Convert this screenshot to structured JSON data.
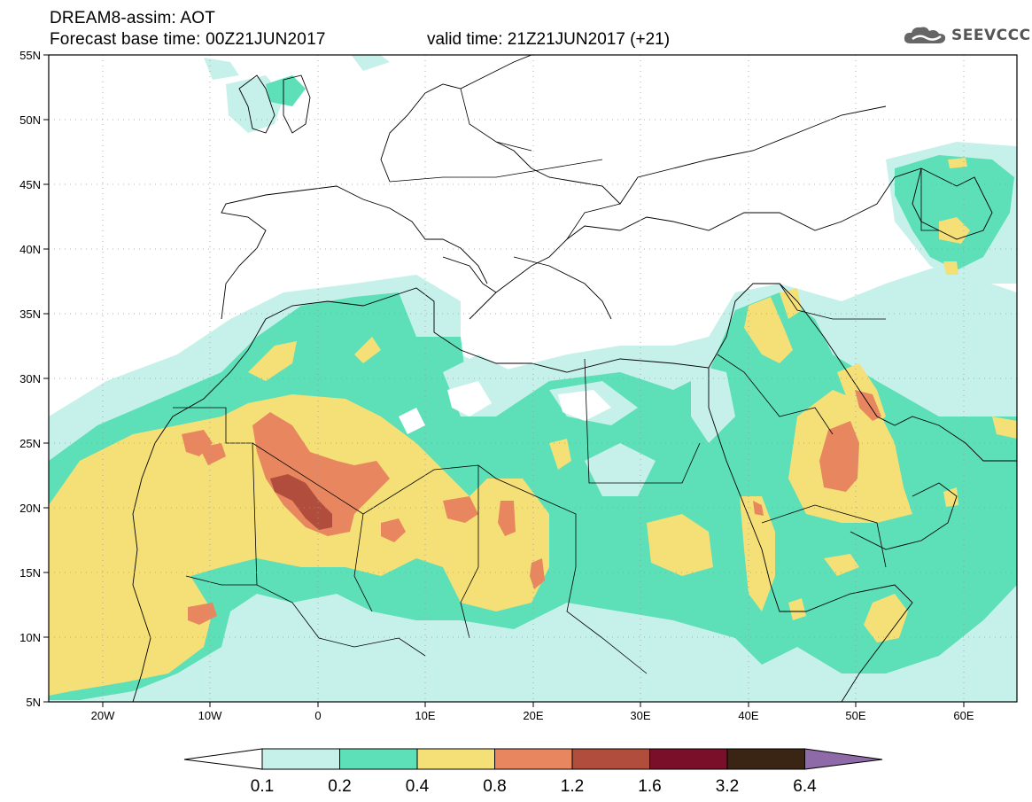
{
  "header": {
    "title_line1": "DREAM8-assim: AOT",
    "title_line2": "Forecast base time: 00Z21JUN2017",
    "valid_time": "valid time: 21Z21JUN2017 (+21)",
    "logo_text": "SEEVCCC",
    "logo_icon": "cloud-icon"
  },
  "map": {
    "lat_labels": [
      "55N",
      "50N",
      "45N",
      "40N",
      "35N",
      "30N",
      "25N",
      "20N",
      "15N",
      "10N",
      "5N"
    ],
    "lon_labels": [
      "20W",
      "10W",
      "0",
      "10E",
      "20E",
      "30E",
      "40E",
      "50E",
      "60E"
    ],
    "lat_range": [
      5,
      55
    ],
    "lon_range": [
      -25,
      65
    ],
    "grid": "dotted"
  },
  "colorbar": {
    "levels": [
      "0.1",
      "0.2",
      "0.4",
      "0.8",
      "1.2",
      "1.6",
      "3.2",
      "6.4"
    ],
    "colors": [
      "#ffffff",
      "#c6f1ea",
      "#5ddfb8",
      "#f5e077",
      "#e8875f",
      "#b14d3c",
      "#7a0f2a",
      "#3a2414",
      "#8e6aa8"
    ]
  },
  "palette": {
    "level_0_1": "#c6f1ea",
    "level_0_2": "#5ddfb8",
    "level_0_4": "#f5e077",
    "level_0_8": "#e8875f",
    "level_1_2": "#b14d3c",
    "level_1_6": "#7a0f2a",
    "level_3_2": "#3a2414"
  }
}
